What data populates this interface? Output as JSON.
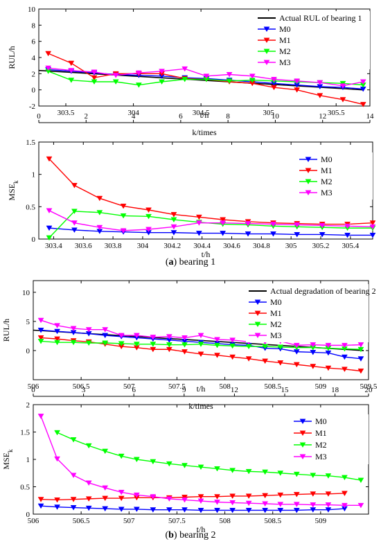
{
  "captions": {
    "a": {
      "letter": "a",
      "text": " bearing 1"
    },
    "b": {
      "letter": "b",
      "text": " bearing 2"
    }
  },
  "colors": {
    "actual": "#000000",
    "M0": "#0000ff",
    "M1": "#ff0000",
    "M2": "#00ff00",
    "M3": "#ff00ff"
  },
  "chart_data": [
    {
      "id": "p1",
      "type": "line",
      "xlabel": "t/h",
      "ylabel": "RUL/h",
      "xlim": [
        303.3,
        305.75
      ],
      "ylim": [
        -2,
        10
      ],
      "xticks": [
        303.5,
        304,
        304.5,
        305,
        305.5
      ],
      "yticks": [
        -2,
        0,
        2,
        4,
        6,
        8,
        10
      ],
      "legend": "top-right",
      "series": [
        {
          "name": "Actual RUL of  bearing 1",
          "key": "actual",
          "marker": "none",
          "x": [
            303.3,
            305.7
          ],
          "y": [
            2.4,
            0.0
          ]
        },
        {
          "name": "M0",
          "key": "M0",
          "marker": "down",
          "x": [
            303.37,
            303.54,
            303.71,
            303.87,
            304.04,
            304.21,
            304.38,
            304.54,
            304.71,
            304.88,
            305.04,
            305.21,
            305.38,
            305.55,
            305.7
          ],
          "y": [
            2.5,
            2.3,
            2.1,
            1.9,
            1.8,
            1.7,
            1.5,
            1.4,
            1.2,
            1.0,
            0.8,
            0.6,
            0.4,
            0.3,
            0.1
          ]
        },
        {
          "name": "M1",
          "key": "M1",
          "marker": "down",
          "x": [
            303.37,
            303.54,
            303.71,
            303.87,
            304.04,
            304.21,
            304.38,
            304.54,
            304.71,
            304.88,
            305.04,
            305.21,
            305.38,
            305.55,
            305.7
          ],
          "y": [
            4.5,
            3.3,
            1.5,
            2.0,
            2.0,
            2.0,
            1.4,
            1.3,
            1.0,
            0.8,
            0.3,
            0.0,
            -0.7,
            -1.2,
            -1.8
          ]
        },
        {
          "name": "M2",
          "key": "M2",
          "marker": "down",
          "x": [
            303.37,
            303.54,
            303.71,
            303.87,
            304.04,
            304.21,
            304.38,
            304.54,
            304.71,
            304.88,
            305.04,
            305.21,
            305.38,
            305.55,
            305.7
          ],
          "y": [
            2.3,
            1.2,
            1.0,
            1.0,
            0.6,
            1.0,
            1.3,
            1.3,
            1.1,
            1.2,
            1.1,
            1.0,
            0.9,
            0.8,
            0.6
          ]
        },
        {
          "name": "M3",
          "key": "M3",
          "marker": "down",
          "x": [
            303.37,
            303.54,
            303.71,
            303.87,
            304.04,
            304.21,
            304.38,
            304.54,
            304.71,
            304.88,
            305.04,
            305.21,
            305.38,
            305.55,
            305.7
          ],
          "y": [
            2.7,
            2.4,
            2.2,
            1.8,
            2.1,
            2.3,
            2.6,
            1.7,
            1.9,
            1.7,
            1.3,
            1.1,
            0.9,
            0.5,
            1.0
          ]
        }
      ],
      "top_axis": {
        "label": "k/times",
        "lim": [
          0,
          14
        ],
        "ticks": [
          0,
          2,
          4,
          6,
          8,
          10,
          12,
          14
        ]
      }
    },
    {
      "id": "p2",
      "type": "line",
      "xlabel": "t/h",
      "ylabel": "MSE",
      "ylabel_sub": "k",
      "xlim": [
        303.3,
        305.55
      ],
      "ylim": [
        0,
        1.5
      ],
      "xticks": [
        303.4,
        303.6,
        303.8,
        304,
        304.2,
        304.4,
        304.6,
        304.8,
        305,
        305.2,
        305.4
      ],
      "yticks": [
        0,
        0.5,
        1,
        1.5
      ],
      "legend": "top-right",
      "series": [
        {
          "name": "M0",
          "key": "M0",
          "marker": "down",
          "x": [
            303.37,
            303.54,
            303.71,
            303.87,
            304.04,
            304.21,
            304.38,
            304.54,
            304.71,
            304.88,
            305.04,
            305.21,
            305.38,
            305.55
          ],
          "y": [
            0.17,
            0.14,
            0.12,
            0.11,
            0.1,
            0.1,
            0.09,
            0.09,
            0.08,
            0.08,
            0.07,
            0.07,
            0.06,
            0.06
          ]
        },
        {
          "name": "M1",
          "key": "M1",
          "marker": "down",
          "x": [
            303.37,
            303.54,
            303.71,
            303.87,
            304.04,
            304.21,
            304.38,
            304.54,
            304.71,
            304.88,
            305.04,
            305.21,
            305.38,
            305.55
          ],
          "y": [
            1.24,
            0.83,
            0.63,
            0.51,
            0.45,
            0.38,
            0.34,
            0.3,
            0.27,
            0.25,
            0.24,
            0.23,
            0.23,
            0.25
          ]
        },
        {
          "name": "M2",
          "key": "M2",
          "marker": "down",
          "x": [
            303.37,
            303.54,
            303.71,
            303.87,
            304.04,
            304.21,
            304.38,
            304.54,
            304.71,
            304.88,
            305.04,
            305.21,
            305.38,
            305.55
          ],
          "y": [
            0.02,
            0.43,
            0.41,
            0.36,
            0.35,
            0.3,
            0.26,
            0.23,
            0.22,
            0.2,
            0.19,
            0.18,
            0.17,
            0.17
          ]
        },
        {
          "name": "M3",
          "key": "M3",
          "marker": "down",
          "x": [
            303.37,
            303.54,
            303.71,
            303.87,
            304.04,
            304.21,
            304.38,
            304.54,
            304.71,
            304.88,
            305.04,
            305.21,
            305.38,
            305.55
          ],
          "y": [
            0.44,
            0.25,
            0.18,
            0.13,
            0.15,
            0.19,
            0.25,
            0.25,
            0.24,
            0.23,
            0.22,
            0.21,
            0.2,
            0.19
          ]
        }
      ]
    },
    {
      "id": "p3",
      "type": "line",
      "xlabel": "t/h",
      "ylabel": "RUL/h",
      "xlim": [
        506,
        509.5
      ],
      "ylim": [
        -5,
        12
      ],
      "xticks": [
        506,
        506.5,
        507,
        507.5,
        508,
        508.5,
        509,
        509.5
      ],
      "yticks": [
        0,
        5,
        10
      ],
      "legend": "top-right",
      "series": [
        {
          "name": "Actual degradation of bearing 2",
          "key": "actual",
          "marker": "none",
          "x": [
            506,
            509.45
          ],
          "y": [
            3.5,
            0.0
          ]
        },
        {
          "name": "M0",
          "key": "M0",
          "marker": "down",
          "x": [
            506.08,
            506.25,
            506.42,
            506.58,
            506.75,
            506.92,
            507.08,
            507.25,
            507.42,
            507.58,
            507.75,
            507.92,
            508.08,
            508.25,
            508.42,
            508.58,
            508.75,
            508.92,
            509.08,
            509.25,
            509.42
          ],
          "y": [
            3.5,
            3.3,
            3.1,
            2.9,
            2.6,
            2.4,
            2.2,
            2.0,
            1.8,
            1.6,
            1.4,
            1.2,
            1.0,
            0.9,
            0.4,
            0.3,
            -0.2,
            -0.3,
            -0.4,
            -1.1,
            -1.4
          ]
        },
        {
          "name": "M1",
          "key": "M1",
          "marker": "down",
          "x": [
            506.08,
            506.25,
            506.42,
            506.58,
            506.75,
            506.92,
            507.08,
            507.25,
            507.42,
            507.58,
            507.75,
            507.92,
            508.08,
            508.25,
            508.42,
            508.58,
            508.75,
            508.92,
            509.08,
            509.25,
            509.42
          ],
          "y": [
            2.2,
            2.0,
            1.7,
            1.5,
            1.1,
            0.7,
            0.5,
            0.2,
            0.2,
            -0.2,
            -0.6,
            -0.8,
            -1.1,
            -1.4,
            -1.8,
            -2.1,
            -2.4,
            -2.7,
            -3.0,
            -3.2,
            -3.5
          ]
        },
        {
          "name": "M2",
          "key": "M2",
          "marker": "down",
          "x": [
            506.08,
            506.25,
            506.42,
            506.58,
            506.75,
            506.92,
            507.08,
            507.25,
            507.42,
            507.58,
            507.75,
            507.92,
            508.08,
            508.25,
            508.42,
            508.58,
            508.75,
            508.92,
            509.08,
            509.25,
            509.42
          ],
          "y": [
            1.6,
            1.4,
            1.4,
            1.3,
            1.3,
            1.2,
            1.1,
            1.1,
            1.0,
            1.0,
            1.1,
            0.9,
            0.8,
            0.7,
            0.7,
            0.6,
            0.5,
            0.5,
            0.4,
            0.3,
            0.2
          ]
        },
        {
          "name": "M3",
          "key": "M3",
          "marker": "down",
          "x": [
            506.08,
            506.25,
            506.42,
            506.58,
            506.75,
            506.92,
            507.08,
            507.25,
            507.42,
            507.58,
            507.75,
            507.92,
            508.08,
            508.25,
            508.42,
            508.58,
            508.75,
            508.92,
            509.08,
            509.25,
            509.42
          ],
          "y": [
            5.2,
            4.3,
            3.8,
            3.6,
            3.6,
            2.6,
            2.6,
            2.3,
            2.4,
            2.2,
            2.6,
            1.9,
            1.8,
            1.5,
            1.5,
            1.6,
            0.9,
            1.0,
            0.9,
            0.9,
            1.0
          ]
        }
      ],
      "top_axis": {
        "label": "k/times",
        "lim": [
          0,
          20
        ],
        "ticks": [
          0,
          3,
          6,
          9,
          12,
          15,
          18,
          20
        ]
      }
    },
    {
      "id": "p4",
      "type": "line",
      "xlabel": "t/h",
      "ylabel": "MSE",
      "ylabel_sub": "k",
      "xlim": [
        506,
        509.5
      ],
      "ylim": [
        0,
        2
      ],
      "xticks": [
        506,
        506.5,
        507,
        507.5,
        508,
        508.5,
        509
      ],
      "yticks": [
        0,
        0.5,
        1,
        1.5,
        2
      ],
      "legend": "top-right",
      "series": [
        {
          "name": "M0",
          "key": "M0",
          "marker": "down",
          "x": [
            506.08,
            506.25,
            506.42,
            506.58,
            506.75,
            506.92,
            507.08,
            507.25,
            507.42,
            507.58,
            507.75,
            507.92,
            508.08,
            508.25,
            508.42,
            508.58,
            508.75,
            508.92,
            509.08,
            509.25
          ],
          "y": [
            0.15,
            0.13,
            0.12,
            0.11,
            0.1,
            0.09,
            0.09,
            0.08,
            0.08,
            0.08,
            0.07,
            0.07,
            0.07,
            0.07,
            0.07,
            0.07,
            0.07,
            0.08,
            0.08,
            0.1
          ]
        },
        {
          "name": "M1",
          "key": "M1",
          "marker": "down",
          "x": [
            506.08,
            506.25,
            506.42,
            506.58,
            506.75,
            506.92,
            507.08,
            507.25,
            507.42,
            507.58,
            507.75,
            507.92,
            508.08,
            508.25,
            508.42,
            508.58,
            508.75,
            508.92,
            509.08,
            509.25
          ],
          "y": [
            0.27,
            0.26,
            0.27,
            0.28,
            0.29,
            0.29,
            0.3,
            0.3,
            0.3,
            0.31,
            0.32,
            0.32,
            0.33,
            0.33,
            0.34,
            0.35,
            0.36,
            0.37,
            0.37,
            0.38
          ]
        },
        {
          "name": "M2",
          "key": "M2",
          "marker": "down",
          "x": [
            506.25,
            506.42,
            506.58,
            506.75,
            506.92,
            507.08,
            507.25,
            507.42,
            507.58,
            507.75,
            507.92,
            508.08,
            508.25,
            508.42,
            508.58,
            508.75,
            508.92,
            509.08,
            509.25,
            509.42
          ],
          "y": [
            1.49,
            1.36,
            1.25,
            1.15,
            1.06,
            1.0,
            0.96,
            0.92,
            0.89,
            0.86,
            0.83,
            0.8,
            0.78,
            0.77,
            0.75,
            0.73,
            0.71,
            0.7,
            0.67,
            0.62
          ]
        },
        {
          "name": "M3",
          "key": "M3",
          "marker": "down",
          "x": [
            506.08,
            506.25,
            506.42,
            506.58,
            506.75,
            506.92,
            507.08,
            507.25,
            507.42,
            507.58,
            507.75,
            507.92,
            508.08,
            508.25,
            508.42,
            508.58,
            508.75,
            508.92,
            509.08,
            509.25,
            509.42
          ],
          "y": [
            1.79,
            1.01,
            0.71,
            0.57,
            0.48,
            0.4,
            0.35,
            0.32,
            0.28,
            0.26,
            0.24,
            0.22,
            0.21,
            0.2,
            0.19,
            0.18,
            0.18,
            0.17,
            0.17,
            0.16,
            0.16
          ]
        }
      ]
    }
  ]
}
